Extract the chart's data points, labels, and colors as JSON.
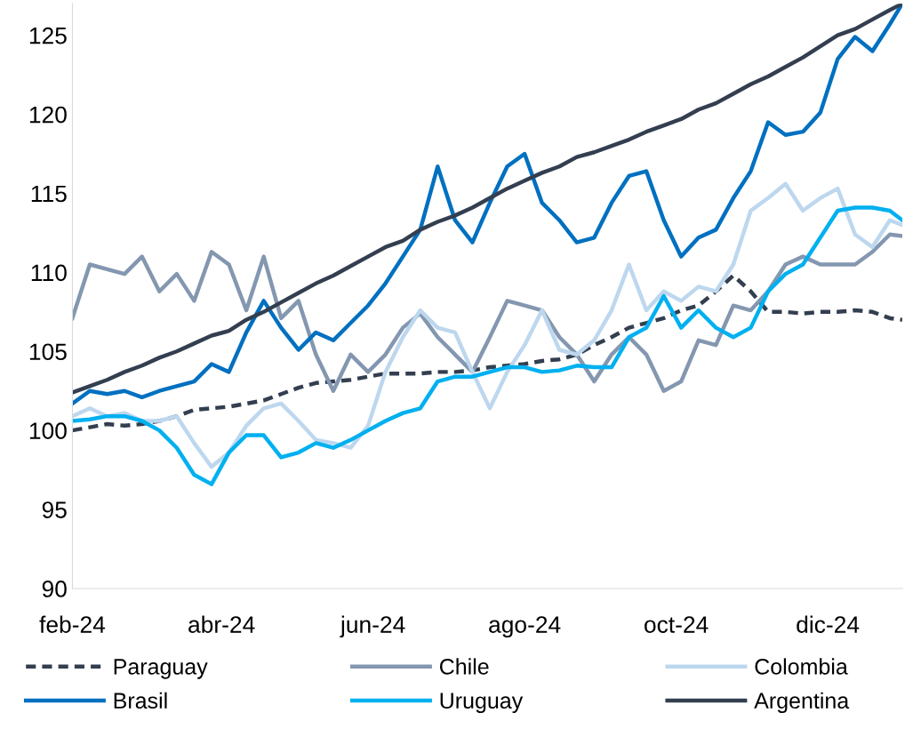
{
  "chart_data": {
    "type": "line",
    "x": [
      "2024-02-01",
      "2024-02-08",
      "2024-02-15",
      "2024-02-22",
      "2024-02-29",
      "2024-03-07",
      "2024-03-14",
      "2024-03-21",
      "2024-03-28",
      "2024-04-04",
      "2024-04-11",
      "2024-04-18",
      "2024-04-25",
      "2024-05-02",
      "2024-05-09",
      "2024-05-16",
      "2024-05-23",
      "2024-05-30",
      "2024-06-06",
      "2024-06-13",
      "2024-06-20",
      "2024-06-27",
      "2024-07-04",
      "2024-07-11",
      "2024-07-18",
      "2024-07-25",
      "2024-08-01",
      "2024-08-08",
      "2024-08-15",
      "2024-08-22",
      "2024-08-29",
      "2024-09-05",
      "2024-09-12",
      "2024-09-19",
      "2024-09-26",
      "2024-10-03",
      "2024-10-10",
      "2024-10-17",
      "2024-10-24",
      "2024-10-31",
      "2024-11-07",
      "2024-11-14",
      "2024-11-21",
      "2024-11-28",
      "2024-12-05",
      "2024-12-12",
      "2024-12-19",
      "2024-12-26",
      "2024-12-31"
    ],
    "series": [
      {
        "name": "Paraguay",
        "color": "#333f50",
        "line_style": "dashed",
        "values": [
          100.0,
          100.2,
          100.4,
          100.3,
          100.4,
          100.6,
          100.9,
          101.3,
          101.4,
          101.5,
          101.7,
          101.9,
          102.3,
          102.7,
          103.0,
          103.1,
          103.2,
          103.4,
          103.6,
          103.6,
          103.6,
          103.7,
          103.7,
          103.8,
          104.0,
          104.1,
          104.2,
          104.4,
          104.5,
          104.8,
          105.4,
          105.9,
          106.5,
          106.8,
          107.1,
          107.6,
          107.9,
          108.8,
          109.8,
          108.8,
          107.5,
          107.5,
          107.4,
          107.5,
          107.5,
          107.6,
          107.5,
          107.1,
          107.0
        ]
      },
      {
        "name": "Chile",
        "color": "#8497b0",
        "values": [
          107.1,
          110.5,
          110.2,
          109.9,
          111.0,
          108.8,
          109.9,
          108.2,
          111.3,
          110.5,
          107.6,
          111.0,
          107.1,
          108.2,
          104.8,
          102.5,
          104.8,
          103.7,
          104.8,
          106.5,
          107.4,
          105.9,
          104.8,
          103.7,
          105.9,
          108.2,
          107.9,
          107.6,
          105.9,
          104.8,
          103.1,
          104.8,
          105.9,
          104.8,
          102.5,
          103.1,
          105.7,
          105.4,
          107.9,
          107.6,
          108.8,
          110.5,
          111.0,
          110.5,
          110.5,
          110.5,
          111.3,
          112.4,
          112.3
        ]
      },
      {
        "name": "Colombia",
        "color": "#bdd7ee",
        "values": [
          100.9,
          101.4,
          100.9,
          101.1,
          100.6,
          100.6,
          100.9,
          99.2,
          97.7,
          98.6,
          100.3,
          101.4,
          101.7,
          100.6,
          99.4,
          99.2,
          98.9,
          100.3,
          103.7,
          105.9,
          107.6,
          106.5,
          106.2,
          103.7,
          101.4,
          103.7,
          105.4,
          107.6,
          105.1,
          104.8,
          105.7,
          107.6,
          110.5,
          107.6,
          108.8,
          108.2,
          109.1,
          108.8,
          110.5,
          113.9,
          114.7,
          115.6,
          113.9,
          114.7,
          115.3,
          112.4,
          111.6,
          113.3,
          113.0
        ]
      },
      {
        "name": "Brasil",
        "color": "#0070c0",
        "values": [
          101.7,
          102.5,
          102.3,
          102.5,
          102.1,
          102.5,
          102.8,
          103.1,
          104.2,
          103.7,
          106.2,
          108.2,
          106.5,
          105.1,
          106.2,
          105.7,
          106.8,
          107.9,
          109.3,
          111.0,
          112.7,
          116.7,
          113.3,
          111.9,
          114.4,
          116.7,
          117.5,
          114.4,
          113.3,
          111.9,
          112.2,
          114.4,
          116.1,
          116.4,
          113.3,
          111.0,
          112.2,
          112.7,
          114.7,
          116.4,
          119.5,
          118.7,
          118.9,
          120.1,
          123.5,
          124.9,
          124.0,
          125.7,
          127.0
        ]
      },
      {
        "name": "Uruguay",
        "color": "#00b0f0",
        "values": [
          100.6,
          100.7,
          100.9,
          100.9,
          100.6,
          100.0,
          98.9,
          97.2,
          96.6,
          98.6,
          99.7,
          99.7,
          98.3,
          98.6,
          99.2,
          98.9,
          99.4,
          100.0,
          100.6,
          101.1,
          101.4,
          103.1,
          103.4,
          103.4,
          103.7,
          104.0,
          104.0,
          103.7,
          103.8,
          104.1,
          104.0,
          104.0,
          105.9,
          106.5,
          108.5,
          106.5,
          107.6,
          106.5,
          105.9,
          106.5,
          108.8,
          109.9,
          110.5,
          112.2,
          113.9,
          114.1,
          114.1,
          113.9,
          113.3
        ]
      },
      {
        "name": "Argentina",
        "color": "#333f50",
        "values": [
          102.4,
          102.8,
          103.2,
          103.7,
          104.1,
          104.6,
          105.0,
          105.5,
          106.0,
          106.3,
          107.0,
          107.5,
          108.1,
          108.7,
          109.3,
          109.8,
          110.4,
          111.0,
          111.6,
          112.0,
          112.7,
          113.2,
          113.6,
          114.1,
          114.7,
          115.3,
          115.8,
          116.3,
          116.7,
          117.3,
          117.6,
          118.0,
          118.4,
          118.9,
          119.3,
          119.7,
          120.3,
          120.7,
          121.3,
          121.9,
          122.4,
          123.0,
          123.6,
          124.3,
          125.0,
          125.4,
          126.0,
          126.6,
          127.0
        ]
      }
    ],
    "xticks": [
      {
        "value": "2024-02-01",
        "label": "feb-24"
      },
      {
        "value": "2024-04-01",
        "label": "abr-24"
      },
      {
        "value": "2024-06-01",
        "label": "jun-24"
      },
      {
        "value": "2024-08-01",
        "label": "ago-24"
      },
      {
        "value": "2024-10-01",
        "label": "oct-24"
      },
      {
        "value": "2024-12-01",
        "label": "dic-24"
      }
    ],
    "xlim": [
      "2024-02-01",
      "2024-12-31"
    ],
    "ylim": [
      90,
      127
    ],
    "yticks": [
      90,
      95,
      100,
      105,
      110,
      115,
      120,
      125
    ],
    "grid": false,
    "legend": "bottom",
    "marker": "none",
    "line_style": "solid"
  }
}
